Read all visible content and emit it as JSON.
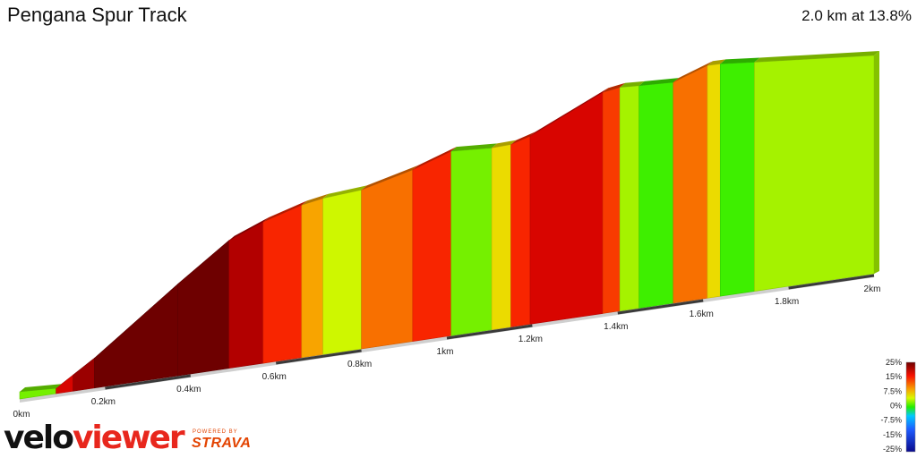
{
  "header": {
    "title": "Pengana Spur Track",
    "summary": "2.0 km at 13.8%"
  },
  "branding": {
    "logo_part1": "velo",
    "logo_part2": "viewer",
    "powered_by": "POWERED BY",
    "strava": "STRAVA"
  },
  "chart_data": {
    "type": "area",
    "title": "Pengana Spur Track",
    "subtitle": "2.0 km at 13.8%",
    "xlabel": "",
    "ylabel": "",
    "x_unit": "km",
    "xlim": [
      0,
      2.0
    ],
    "x_ticks": [
      {
        "value": 0,
        "label": "0km"
      },
      {
        "value": 0.2,
        "label": "0.2km"
      },
      {
        "value": 0.4,
        "label": "0.4km"
      },
      {
        "value": 0.6,
        "label": "0.6km"
      },
      {
        "value": 0.8,
        "label": "0.8km"
      },
      {
        "value": 1.0,
        "label": "1km"
      },
      {
        "value": 1.2,
        "label": "1.2km"
      },
      {
        "value": 1.4,
        "label": "1.4km"
      },
      {
        "value": 1.6,
        "label": "1.6km"
      },
      {
        "value": 1.8,
        "label": "1.8km"
      },
      {
        "value": 2.0,
        "label": "2km"
      }
    ],
    "segments": [
      {
        "start": 0.0,
        "end": 0.085,
        "grade": 3
      },
      {
        "start": 0.085,
        "end": 0.125,
        "grade": 20
      },
      {
        "start": 0.125,
        "end": 0.175,
        "grade": 23
      },
      {
        "start": 0.175,
        "end": 0.37,
        "grade": 25
      },
      {
        "start": 0.37,
        "end": 0.49,
        "grade": 25
      },
      {
        "start": 0.49,
        "end": 0.57,
        "grade": 22
      },
      {
        "start": 0.57,
        "end": 0.66,
        "grade": 17
      },
      {
        "start": 0.66,
        "end": 0.71,
        "grade": 11
      },
      {
        "start": 0.71,
        "end": 0.8,
        "grade": 7
      },
      {
        "start": 0.8,
        "end": 0.92,
        "grade": 13
      },
      {
        "start": 0.92,
        "end": 1.01,
        "grade": 17
      },
      {
        "start": 1.01,
        "end": 1.105,
        "grade": 3
      },
      {
        "start": 1.105,
        "end": 1.15,
        "grade": 9
      },
      {
        "start": 1.15,
        "end": 1.195,
        "grade": 17
      },
      {
        "start": 1.195,
        "end": 1.365,
        "grade": 20
      },
      {
        "start": 1.365,
        "end": 1.405,
        "grade": 16
      },
      {
        "start": 1.405,
        "end": 1.45,
        "grade": 5
      },
      {
        "start": 1.45,
        "end": 1.53,
        "grade": 1
      },
      {
        "start": 1.53,
        "end": 1.61,
        "grade": 13
      },
      {
        "start": 1.61,
        "end": 1.64,
        "grade": 9
      },
      {
        "start": 1.64,
        "end": 1.72,
        "grade": 1
      },
      {
        "start": 1.72,
        "end": 2.0,
        "grade": 5
      }
    ],
    "profile_points": [
      {
        "x": 0.0,
        "rel": 0.0
      },
      {
        "x": 0.085,
        "rel": 0.01
      },
      {
        "x": 0.125,
        "rel": 0.05
      },
      {
        "x": 0.175,
        "rel": 0.1
      },
      {
        "x": 0.37,
        "rel": 0.32
      },
      {
        "x": 0.49,
        "rel": 0.45
      },
      {
        "x": 0.57,
        "rel": 0.505
      },
      {
        "x": 0.66,
        "rel": 0.555
      },
      {
        "x": 0.71,
        "rel": 0.575
      },
      {
        "x": 0.8,
        "rel": 0.6
      },
      {
        "x": 0.92,
        "rel": 0.66
      },
      {
        "x": 1.01,
        "rel": 0.715
      },
      {
        "x": 1.105,
        "rel": 0.725
      },
      {
        "x": 1.15,
        "rel": 0.735
      },
      {
        "x": 1.195,
        "rel": 0.76
      },
      {
        "x": 1.365,
        "rel": 0.89
      },
      {
        "x": 1.405,
        "rel": 0.905
      },
      {
        "x": 1.45,
        "rel": 0.91
      },
      {
        "x": 1.53,
        "rel": 0.92
      },
      {
        "x": 1.61,
        "rel": 0.97
      },
      {
        "x": 1.64,
        "rel": 0.975
      },
      {
        "x": 1.72,
        "rel": 0.98
      },
      {
        "x": 2.0,
        "rel": 1.0
      }
    ],
    "legend": {
      "title": "",
      "labels": [
        "25%",
        "15%",
        "7.5%",
        "0%",
        "-7.5%",
        "-15%",
        "-25%"
      ],
      "placement": "bottom-right"
    },
    "colors": {
      "grade_stops": [
        {
          "grade": -25,
          "color": "#0a0a8c"
        },
        {
          "grade": -15,
          "color": "#1e5cff"
        },
        {
          "grade": -7.5,
          "color": "#00c8ff"
        },
        {
          "grade": 0,
          "color": "#22ee00"
        },
        {
          "grade": 4,
          "color": "#90f000"
        },
        {
          "grade": 7.5,
          "color": "#d8f800"
        },
        {
          "grade": 10,
          "color": "#f8c800"
        },
        {
          "grade": 12,
          "color": "#f88000"
        },
        {
          "grade": 15,
          "color": "#f85000"
        },
        {
          "grade": 18,
          "color": "#f81000"
        },
        {
          "grade": 21,
          "color": "#c80000"
        },
        {
          "grade": 25,
          "color": "#6e0000"
        }
      ],
      "ground_light": "#e4e4e4",
      "ground_dark": "#3a3a3a"
    }
  }
}
